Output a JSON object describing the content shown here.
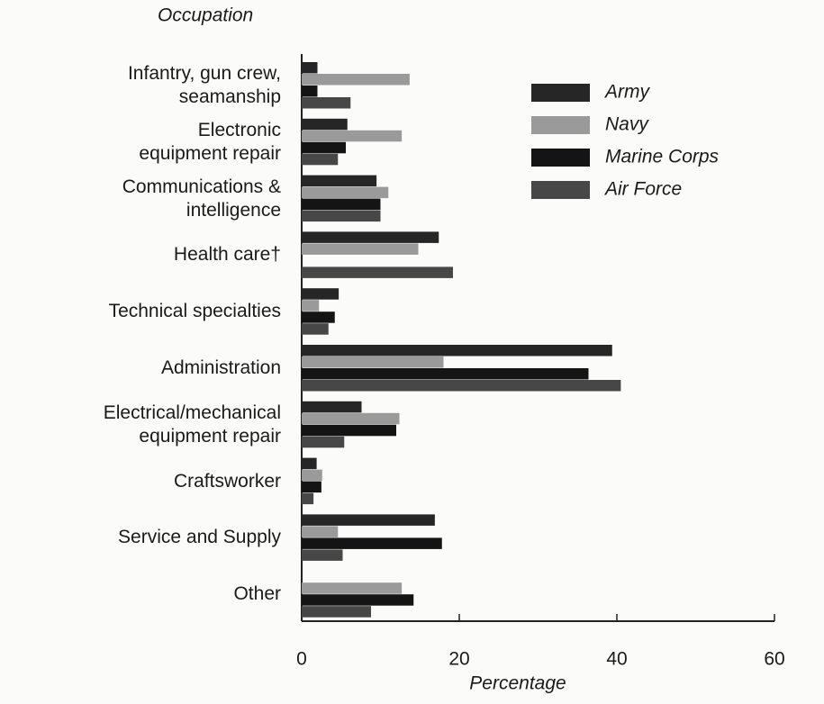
{
  "chart_data": {
    "type": "hbar",
    "title": "Occupation",
    "xlabel": "Percentage",
    "categories": [
      "Infantry, gun crew,\nseamanship",
      "Electronic\nequipment repair",
      "Communications &\nintelligence",
      "Health care†",
      "Technical specialties",
      "Administration",
      "Electrical/mechanical\nequipment repair",
      "Craftsworker",
      "Service and Supply",
      "Other"
    ],
    "series": [
      {
        "name": "Army",
        "color": "#262626",
        "values": [
          2,
          5.8,
          9.5,
          17.4,
          4.7,
          39.4,
          7.6,
          1.9,
          16.9,
          0
        ]
      },
      {
        "name": "Navy",
        "color": "#9a9a9a",
        "values": [
          13.7,
          12.7,
          11,
          14.8,
          2.2,
          18,
          12.4,
          2.6,
          4.6,
          12.7
        ]
      },
      {
        "name": "Marine Corps",
        "color": "#141414",
        "values": [
          2,
          5.6,
          10,
          0,
          4.2,
          36.4,
          12,
          2.5,
          17.8,
          14.2
        ]
      },
      {
        "name": "Air Force",
        "color": "#474747",
        "values": [
          6.2,
          4.6,
          10,
          19.2,
          3.4,
          40.5,
          5.4,
          1.5,
          5.2,
          8.8
        ]
      }
    ],
    "xlim": [
      0,
      60
    ],
    "xticks": [
      0,
      20,
      40,
      60
    ]
  }
}
